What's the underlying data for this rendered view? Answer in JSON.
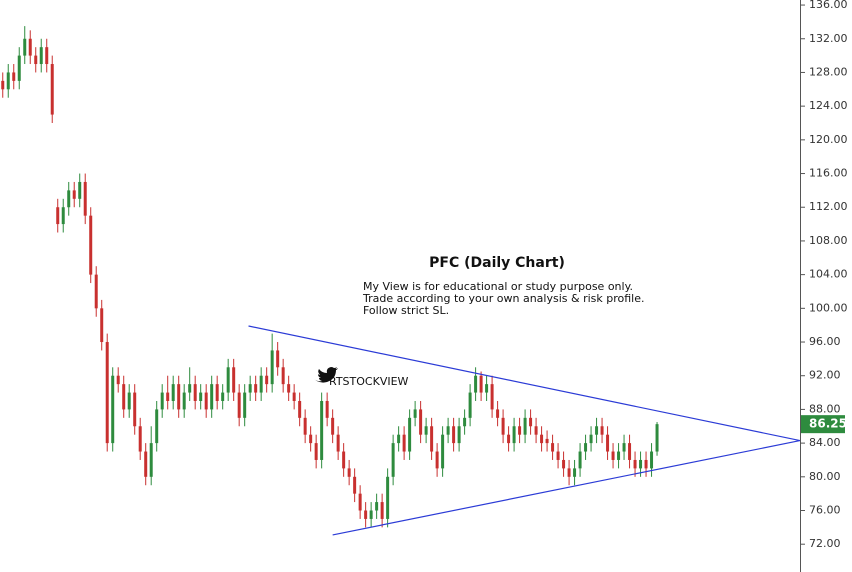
{
  "chart_data": {
    "type": "candlestick",
    "title": "PFC  (Daily Chart)",
    "notes": [
      "My View is for educational or study purpose only.",
      "Trade according to your own  analysis & risk profile.",
      "Follow strict SL."
    ],
    "watermark": "RTSTOCKVIEW",
    "up_color": "#2e8b3e",
    "down_color": "#c8302f",
    "trendline_color": "#2b3bd6",
    "xlim": [
      -0.5,
      145
    ],
    "ylim": [
      68.7,
      136.6
    ],
    "yticks": [
      {
        "value": 72,
        "label": "72.00"
      },
      {
        "value": 76,
        "label": "76.00"
      },
      {
        "value": 80,
        "label": "80.00"
      },
      {
        "value": 84,
        "label": "84.00"
      },
      {
        "value": 88,
        "label": "88.00"
      },
      {
        "value": 92,
        "label": "92.00"
      },
      {
        "value": 96,
        "label": "96.00"
      },
      {
        "value": 100,
        "label": "100.00"
      },
      {
        "value": 104,
        "label": "104.00"
      },
      {
        "value": 108,
        "label": "108.00"
      },
      {
        "value": 112,
        "label": "112.00"
      },
      {
        "value": 116,
        "label": "116.00"
      },
      {
        "value": 120,
        "label": "120.00"
      },
      {
        "value": 124,
        "label": "124.00"
      },
      {
        "value": 128,
        "label": "128.00"
      },
      {
        "value": 132,
        "label": "132.00"
      },
      {
        "value": 136,
        "label": "136.00"
      }
    ],
    "open": [
      127,
      126,
      128,
      127,
      130,
      132,
      130,
      129,
      131,
      129,
      112,
      110,
      112,
      114,
      113,
      115,
      111,
      104,
      100,
      96,
      84,
      92,
      91,
      88,
      90,
      86,
      83,
      80,
      84,
      88,
      90,
      89,
      91,
      88,
      90,
      91,
      89,
      90,
      88,
      91,
      89,
      90,
      93,
      90,
      87,
      90,
      91,
      90,
      92,
      91,
      95,
      93,
      91,
      90,
      89,
      87,
      85,
      84,
      82,
      89,
      87,
      85,
      83,
      81,
      80,
      78,
      76,
      75,
      76,
      77,
      75,
      80,
      84,
      85,
      83,
      87,
      88,
      85,
      86,
      83,
      81,
      85,
      86,
      84,
      86,
      87,
      90,
      92,
      90,
      91,
      88,
      87,
      85,
      84,
      86,
      85,
      87,
      86,
      85,
      84.5,
      84,
      83,
      82,
      81,
      80,
      81,
      83,
      84,
      85,
      86,
      85,
      83,
      82,
      83,
      84,
      82,
      81,
      82,
      81,
      83
    ],
    "high": [
      128,
      129,
      129,
      131,
      133.5,
      133,
      131,
      132,
      132,
      130,
      113,
      113,
      115,
      115,
      116,
      116,
      112,
      105,
      101,
      97,
      93,
      93,
      92,
      91,
      91,
      87,
      84,
      86,
      89,
      91,
      92,
      92,
      92,
      91,
      93,
      92,
      91,
      91,
      92,
      92,
      91,
      94,
      94,
      91,
      91,
      92,
      92,
      93,
      93,
      97,
      96,
      94,
      92,
      91,
      90,
      88,
      86,
      85,
      90,
      90,
      88,
      86,
      84,
      82,
      81,
      79,
      77,
      77,
      78,
      78,
      81,
      85,
      86,
      86,
      88,
      89,
      89,
      87,
      87,
      84,
      86,
      87,
      87,
      87,
      88,
      91,
      93,
      92.5,
      92,
      92,
      89,
      88,
      86,
      87,
      87,
      88,
      88,
      87,
      86,
      85.5,
      85,
      84,
      83,
      82,
      82,
      84,
      85,
      86,
      87,
      87,
      86,
      84,
      84,
      85,
      85,
      83,
      83,
      83,
      84,
      86.5
    ],
    "low": [
      125,
      125,
      126,
      126,
      129,
      129,
      128,
      128,
      128,
      122,
      109,
      109,
      111,
      112,
      112,
      110,
      103,
      99,
      95,
      83,
      83,
      90,
      87,
      87,
      85,
      82,
      79,
      79,
      83,
      87,
      88,
      88,
      87,
      87,
      89,
      88,
      88,
      87,
      87,
      88,
      88,
      89,
      89,
      86,
      86,
      89,
      89,
      89,
      90,
      90,
      92,
      90,
      89,
      88,
      86,
      84,
      83,
      81,
      81,
      86,
      84,
      82,
      80,
      79,
      77,
      75,
      74,
      74,
      75,
      74,
      74,
      79,
      83,
      82,
      82,
      86,
      84,
      84,
      82,
      80,
      80,
      84,
      83,
      83,
      85,
      86,
      89,
      89,
      89,
      87,
      86,
      84,
      83,
      83,
      84,
      84,
      85,
      84,
      83,
      83,
      82,
      81,
      80,
      79,
      79,
      80,
      82,
      83,
      84,
      84,
      82,
      81,
      81,
      82,
      81,
      80,
      80,
      80,
      80,
      82.5
    ],
    "close": [
      126,
      128,
      127,
      130,
      132,
      130,
      129,
      131,
      129,
      123,
      110,
      112,
      114,
      113,
      115,
      111,
      104,
      100,
      96,
      84,
      92,
      91,
      88,
      90,
      86,
      83,
      80,
      84,
      88,
      90,
      89,
      91,
      88,
      90,
      91,
      89,
      90,
      88,
      91,
      89,
      90,
      93,
      90,
      87,
      90,
      91,
      90,
      92,
      91,
      95,
      93,
      91,
      90,
      89,
      87,
      85,
      84,
      82,
      89,
      87,
      85,
      83,
      81,
      80,
      78,
      76,
      75,
      76,
      77,
      75,
      80,
      84,
      85,
      83,
      87,
      88,
      85,
      86,
      83,
      81,
      85,
      86,
      84,
      86,
      87,
      90,
      92,
      90,
      91,
      88,
      87,
      85,
      84,
      86,
      85,
      87,
      86,
      85,
      84,
      84,
      83,
      82,
      81,
      80,
      81,
      83,
      84,
      85,
      86,
      85,
      83,
      82,
      83,
      84,
      82,
      81,
      82,
      81,
      83,
      86.25
    ],
    "trendlines": [
      {
        "x": [
          44.7,
          145
        ],
        "y": [
          97.9,
          84.3
        ]
      },
      {
        "x": [
          60,
          145
        ],
        "y": [
          73.1,
          84.3
        ]
      }
    ]
  }
}
